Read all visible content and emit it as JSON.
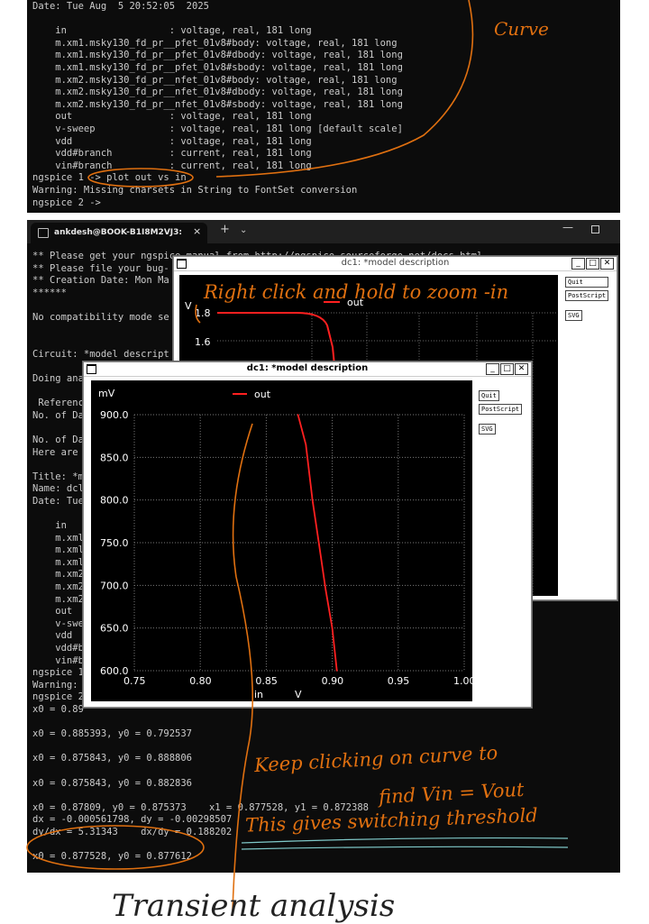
{
  "term1": {
    "lines": [
      "Date: Tue Aug  5 20:52:05  2025",
      "",
      "    in                  : voltage, real, 181 long",
      "    m.xm1.msky130_fd_pr__pfet_01v8#body: voltage, real, 181 long",
      "    m.xm1.msky130_fd_pr__pfet_01v8#dbody: voltage, real, 181 long",
      "    m.xm1.msky130_fd_pr__pfet_01v8#sbody: voltage, real, 181 long",
      "    m.xm2.msky130_fd_pr__nfet_01v8#body: voltage, real, 181 long",
      "    m.xm2.msky130_fd_pr__nfet_01v8#dbody: voltage, real, 181 long",
      "    m.xm2.msky130_fd_pr__nfet_01v8#sbody: voltage, real, 181 long",
      "    out                 : voltage, real, 181 long",
      "    v-sweep             : voltage, real, 181 long [default scale]",
      "    vdd                 : voltage, real, 181 long",
      "    vdd#branch          : current, real, 181 long",
      "    vin#branch          : current, real, 181 long",
      "ngspice 1 -> plot out vs in",
      "Warning: Missing charsets in String to FontSet conversion",
      "ngspice 2 ->"
    ]
  },
  "term2": {
    "tab_title": "ankdesh@BOOK-B1I8M2VJ3:",
    "tab_close": "×",
    "tab_plus": "+",
    "tab_dropdown": "⌄",
    "window_min": "—",
    "lines": [
      "** Please get your ngspice manual from http://ngspice.sourceforge.net/docs.html",
      "** Please file your bug-",
      "** Creation Date: Mon Ma",
      "******",
      "",
      "No compatibility mode se",
      "",
      "",
      "Circuit: *model descript",
      "",
      "Doing ana",
      "",
      " Referenc",
      "No. of Da",
      "",
      "No. of Da",
      "Here are",
      "",
      "Title: *m",
      "Name: dcl",
      "Date: Tue",
      "",
      "    in",
      "    m.xml",
      "    m.xml",
      "    m.xml",
      "    m.xm2",
      "    m.xm2",
      "    m.xm2",
      "    out",
      "    v-swe",
      "    vdd",
      "    vdd#b",
      "    vin#b",
      "ngspice 1",
      "Warning:",
      "ngspice 2",
      "x0 = 0.89",
      "",
      "x0 = 0.885393, y0 = 0.792537",
      "",
      "x0 = 0.875843, y0 = 0.888806",
      "",
      "x0 = 0.875843, y0 = 0.882836",
      "",
      "x0 = 0.87809, y0 = 0.875373    x1 = 0.877528, y1 = 0.872388",
      "dx = -0.000561798, dy = -0.00298507",
      "dy/dx = 5.31343    dx/dy = 0.188202",
      "",
      "x0 = 0.877528, y0 = 0.877612"
    ]
  },
  "plot_back": {
    "title": "dc1: *model description",
    "ylabel": "V",
    "legend": "out",
    "yticks": [
      "1.8",
      "1.6"
    ],
    "buttons": [
      "Quit",
      "PostScript",
      "SVG"
    ]
  },
  "plot_front": {
    "title": "dc1: *model description",
    "buttons": [
      "Quit",
      "PostScript",
      "SVG"
    ]
  },
  "chart_data": {
    "type": "line",
    "title": "dc1: *model description",
    "ylabel": "mV",
    "xlabel": "in",
    "xunit": "V",
    "legend": "out",
    "legend_position": "top-center",
    "xlim": [
      0.75,
      1.0
    ],
    "ylim": [
      600.0,
      900.0
    ],
    "xticks": [
      "0.75",
      "0.80",
      "0.85",
      "0.90",
      "0.95",
      "1.00"
    ],
    "yticks": [
      "900.0",
      "850.0",
      "800.0",
      "750.0",
      "700.0",
      "650.0",
      "600.0"
    ],
    "grid": true,
    "series": [
      {
        "name": "out",
        "color": "#ff2020",
        "x": [
          0.874,
          0.88,
          0.885,
          0.89,
          0.895,
          0.9,
          0.9035
        ],
        "y": [
          900.0,
          865.0,
          800.0,
          748.0,
          695.0,
          650.0,
          600.0
        ]
      }
    ]
  },
  "annotations": {
    "back_plot_note": "Right click and hold to zoom -in",
    "curve_note": "Curve",
    "click_note_1": "Keep clicking on curve to",
    "click_note_2": "find Vin = Vout",
    "threshold_note": "This gives switching threshold",
    "bottom_heading": "Transient analysis",
    "ink_color": "#e07010",
    "underline_color": "#7fc8c8"
  }
}
